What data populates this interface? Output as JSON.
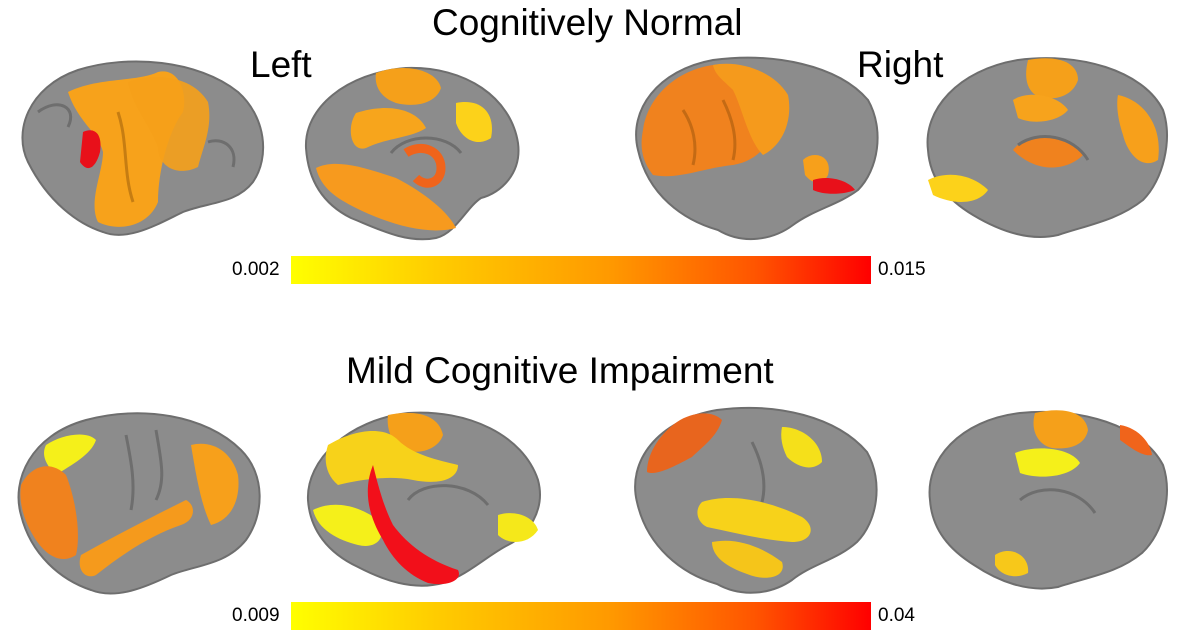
{
  "panels": {
    "top": {
      "title": "Cognitively Normal",
      "left_label": "Left",
      "right_label": "Right",
      "colorbar": {
        "min_label": "0.002",
        "max_label": "0.015"
      }
    },
    "bottom": {
      "title": "Mild Cognitive Impairment",
      "colorbar": {
        "min_label": "0.009",
        "max_label": "0.04"
      }
    }
  },
  "colors": {
    "brain_gray": "#8c8c8c",
    "scale_low": "#ffff00",
    "scale_mid": "#ff9900",
    "scale_high": "#ff0000"
  }
}
